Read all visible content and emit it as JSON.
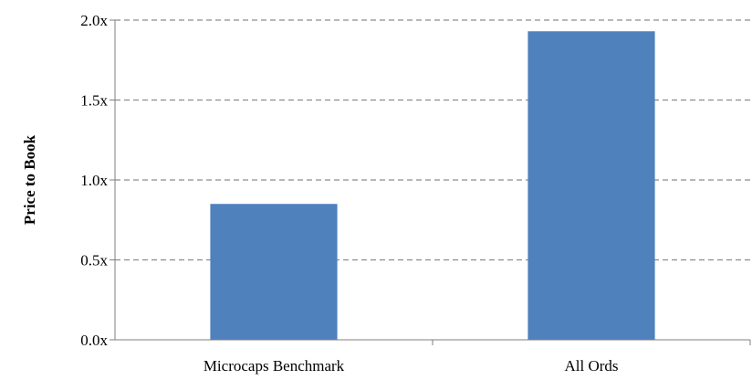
{
  "chart_data": {
    "type": "bar",
    "title": "",
    "xlabel": "",
    "ylabel": "Price to Book",
    "categories": [
      "Microcaps Benchmark",
      "All Ords"
    ],
    "values": [
      0.85,
      1.93
    ],
    "ylim": [
      0,
      2.0
    ],
    "yticks": [
      0.0,
      0.5,
      1.0,
      1.5,
      2.0
    ],
    "ytick_labels": [
      "0.0x",
      "0.5x",
      "1.0x",
      "1.5x",
      "2.0x"
    ],
    "grid": true,
    "grid_style": "dashed",
    "legend": "none",
    "colors": {
      "bar": "#4F81BD",
      "grid": "#8C8C8C",
      "axis": "#7F7F7F"
    }
  }
}
